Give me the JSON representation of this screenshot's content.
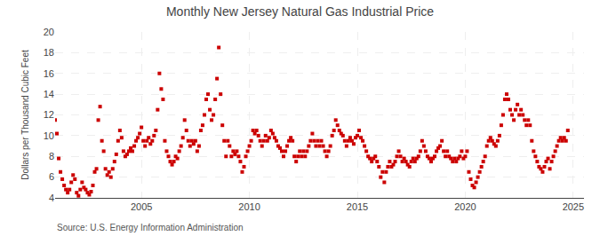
{
  "chart_data": {
    "type": "scatter",
    "title": "Monthly New Jersey Natural Gas Industrial Price",
    "ylabel": "Dollars per Thousand Cubic Feet",
    "annotations": [
      "Source: U.S. Energy Information Administration"
    ],
    "color": "#cc0000",
    "marker": "square",
    "grid": true,
    "xlim": [
      2001.0,
      2025.5
    ],
    "ylim": [
      4,
      20
    ],
    "xticks": [
      2005,
      2010,
      2015,
      2020,
      2025
    ],
    "yticks": [
      4,
      6,
      8,
      10,
      12,
      14,
      16,
      18,
      20
    ],
    "x": [
      2001.0,
      2001.083,
      2001.167,
      2001.25,
      2001.333,
      2001.417,
      2001.5,
      2001.583,
      2001.667,
      2001.75,
      2001.833,
      2001.917,
      2002.0,
      2002.083,
      2002.167,
      2002.25,
      2002.333,
      2002.417,
      2002.5,
      2002.583,
      2002.667,
      2002.75,
      2002.833,
      2002.917,
      2003.0,
      2003.083,
      2003.167,
      2003.25,
      2003.333,
      2003.417,
      2003.5,
      2003.583,
      2003.667,
      2003.75,
      2003.833,
      2003.917,
      2004.0,
      2004.083,
      2004.167,
      2004.25,
      2004.333,
      2004.417,
      2004.5,
      2004.583,
      2004.667,
      2004.75,
      2004.833,
      2004.917,
      2005.0,
      2005.083,
      2005.167,
      2005.25,
      2005.333,
      2005.417,
      2005.5,
      2005.583,
      2005.667,
      2005.75,
      2005.833,
      2005.917,
      2006.0,
      2006.083,
      2006.167,
      2006.25,
      2006.333,
      2006.417,
      2006.5,
      2006.583,
      2006.667,
      2006.75,
      2006.833,
      2006.917,
      2007.0,
      2007.083,
      2007.167,
      2007.25,
      2007.333,
      2007.417,
      2007.5,
      2007.583,
      2007.667,
      2007.75,
      2007.833,
      2007.917,
      2008.0,
      2008.083,
      2008.167,
      2008.25,
      2008.333,
      2008.417,
      2008.5,
      2008.583,
      2008.667,
      2008.75,
      2008.833,
      2008.917,
      2009.0,
      2009.083,
      2009.167,
      2009.25,
      2009.333,
      2009.417,
      2009.5,
      2009.583,
      2009.667,
      2009.75,
      2009.833,
      2009.917,
      2010.0,
      2010.083,
      2010.167,
      2010.25,
      2010.333,
      2010.417,
      2010.5,
      2010.583,
      2010.667,
      2010.75,
      2010.833,
      2010.917,
      2011.0,
      2011.083,
      2011.167,
      2011.25,
      2011.333,
      2011.417,
      2011.5,
      2011.583,
      2011.667,
      2011.75,
      2011.833,
      2011.917,
      2012.0,
      2012.083,
      2012.167,
      2012.25,
      2012.333,
      2012.417,
      2012.5,
      2012.583,
      2012.667,
      2012.75,
      2012.833,
      2012.917,
      2013.0,
      2013.083,
      2013.167,
      2013.25,
      2013.333,
      2013.417,
      2013.5,
      2013.583,
      2013.667,
      2013.75,
      2013.833,
      2013.917,
      2014.0,
      2014.083,
      2014.167,
      2014.25,
      2014.333,
      2014.417,
      2014.5,
      2014.583,
      2014.667,
      2014.75,
      2014.833,
      2014.917,
      2015.0,
      2015.083,
      2015.167,
      2015.25,
      2015.333,
      2015.417,
      2015.5,
      2015.583,
      2015.667,
      2015.75,
      2015.833,
      2015.917,
      2016.0,
      2016.083,
      2016.167,
      2016.25,
      2016.333,
      2016.417,
      2016.5,
      2016.583,
      2016.667,
      2016.75,
      2016.833,
      2016.917,
      2017.0,
      2017.083,
      2017.167,
      2017.25,
      2017.333,
      2017.417,
      2017.5,
      2017.583,
      2017.667,
      2017.75,
      2017.833,
      2017.917,
      2018.0,
      2018.083,
      2018.167,
      2018.25,
      2018.333,
      2018.417,
      2018.5,
      2018.583,
      2018.667,
      2018.75,
      2018.833,
      2018.917,
      2019.0,
      2019.083,
      2019.167,
      2019.25,
      2019.333,
      2019.417,
      2019.5,
      2019.583,
      2019.667,
      2019.75,
      2019.833,
      2019.917,
      2020.0,
      2020.083,
      2020.167,
      2020.25,
      2020.333,
      2020.417,
      2020.5,
      2020.583,
      2020.667,
      2020.75,
      2020.833,
      2020.917,
      2021.0,
      2021.083,
      2021.167,
      2021.25,
      2021.333,
      2021.417,
      2021.5,
      2021.583,
      2021.667,
      2021.75,
      2021.833,
      2021.917,
      2022.0,
      2022.083,
      2022.167,
      2022.25,
      2022.333,
      2022.417,
      2022.5,
      2022.583,
      2022.667,
      2022.75,
      2022.833,
      2022.917,
      2023.0,
      2023.083,
      2023.167,
      2023.25,
      2023.333,
      2023.417,
      2023.5,
      2023.583,
      2023.667,
      2023.75,
      2023.833,
      2023.917,
      2024.0,
      2024.083,
      2024.167,
      2024.25,
      2024.333,
      2024.417,
      2024.5,
      2024.583,
      2024.667,
      2024.75
    ],
    "values": [
      11.5,
      10.2,
      7.8,
      6.5,
      5.8,
      5.2,
      4.8,
      4.5,
      4.8,
      5.5,
      6.2,
      5.8,
      4.5,
      4.2,
      4.8,
      5.5,
      5.0,
      4.8,
      4.5,
      4.3,
      4.6,
      5.2,
      6.5,
      6.8,
      11.5,
      12.8,
      9.5,
      8.5,
      6.8,
      6.2,
      6.5,
      6.0,
      6.8,
      7.5,
      8.2,
      9.5,
      10.5,
      9.8,
      8.5,
      8.0,
      8.2,
      8.5,
      8.8,
      8.5,
      9.0,
      9.5,
      9.8,
      10.2,
      10.8,
      9.5,
      9.0,
      9.5,
      9.8,
      9.2,
      9.5,
      10.0,
      10.5,
      12.5,
      16.0,
      14.5,
      13.5,
      9.5,
      8.5,
      8.0,
      7.5,
      7.2,
      7.5,
      8.0,
      7.8,
      8.5,
      9.0,
      9.8,
      11.5,
      10.5,
      9.5,
      9.0,
      9.5,
      9.2,
      9.5,
      8.5,
      9.0,
      10.5,
      11.0,
      12.0,
      13.5,
      14.0,
      12.5,
      11.5,
      12.0,
      13.5,
      15.5,
      18.5,
      14.0,
      11.0,
      9.5,
      8.0,
      9.5,
      9.0,
      8.0,
      8.5,
      8.2,
      8.5,
      8.0,
      7.5,
      6.5,
      7.0,
      8.0,
      8.5,
      9.0,
      9.5,
      10.5,
      10.2,
      10.5,
      10.0,
      9.5,
      9.0,
      9.5,
      10.0,
      9.5,
      9.8,
      10.5,
      10.2,
      9.8,
      9.5,
      9.0,
      8.8,
      8.5,
      8.0,
      8.5,
      9.0,
      9.5,
      9.8,
      9.5,
      8.0,
      7.5,
      8.0,
      8.5,
      8.0,
      8.5,
      8.0,
      8.5,
      9.0,
      9.5,
      10.2,
      9.5,
      9.0,
      9.5,
      9.0,
      9.5,
      9.0,
      8.5,
      8.0,
      8.5,
      9.0,
      10.0,
      10.5,
      11.5,
      11.0,
      10.5,
      10.2,
      10.0,
      9.5,
      9.0,
      9.5,
      9.8,
      9.5,
      9.2,
      9.8,
      10.0,
      10.5,
      9.8,
      9.5,
      9.0,
      8.5,
      8.0,
      7.8,
      7.5,
      7.8,
      8.0,
      7.5,
      7.0,
      6.0,
      6.5,
      5.5,
      6.5,
      7.0,
      7.5,
      7.0,
      7.2,
      7.5,
      8.0,
      8.5,
      8.0,
      7.5,
      7.8,
      7.5,
      7.2,
      7.0,
      7.5,
      7.8,
      7.5,
      7.8,
      8.0,
      8.5,
      9.5,
      9.0,
      8.5,
      8.0,
      7.8,
      7.5,
      7.8,
      8.0,
      8.5,
      8.8,
      9.0,
      9.5,
      8.5,
      8.0,
      8.5,
      8.0,
      7.8,
      7.5,
      7.8,
      7.5,
      7.8,
      8.0,
      8.5,
      7.8,
      8.0,
      8.5,
      6.5,
      5.8,
      5.2,
      5.0,
      5.5,
      6.0,
      6.5,
      7.0,
      7.5,
      8.0,
      9.0,
      9.5,
      9.8,
      9.5,
      9.2,
      9.0,
      9.5,
      10.0,
      11.0,
      12.0,
      13.5,
      14.0,
      13.5,
      12.5,
      12.0,
      11.5,
      12.5,
      13.0,
      12.0,
      12.5,
      12.0,
      11.5,
      11.0,
      11.5,
      11.0,
      9.5,
      8.5,
      8.0,
      7.5,
      7.0,
      6.8,
      6.5,
      7.0,
      7.5,
      7.8,
      6.8,
      7.5,
      8.0,
      8.5,
      9.0,
      9.5,
      9.8,
      9.5,
      9.8,
      9.5,
      10.5
    ]
  }
}
